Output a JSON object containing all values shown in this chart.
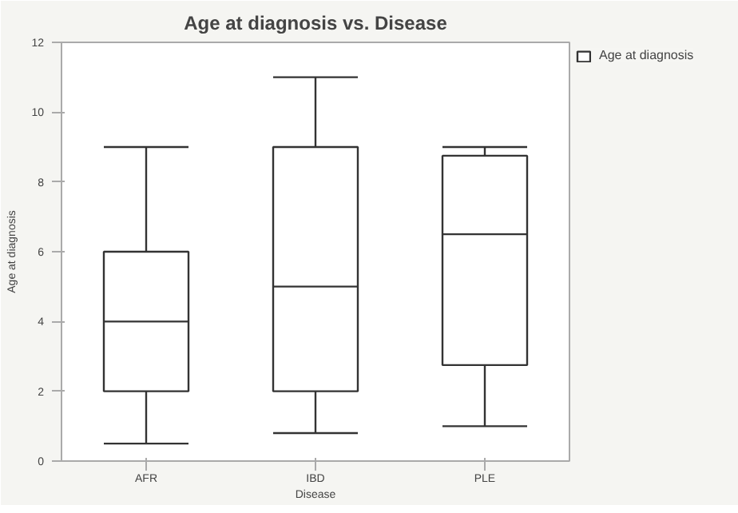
{
  "chart_data": {
    "type": "box",
    "title": "Age at diagnosis vs. Disease",
    "xlabel": "Disease",
    "ylabel": "Age at diagnosis",
    "categories": [
      "AFR",
      "IBD",
      "PLE"
    ],
    "series": [
      {
        "name": "Age at diagnosis",
        "color": "#333333",
        "boxes": [
          {
            "low": 0.5,
            "q1": 2,
            "median": 4,
            "q3": 6,
            "high": 9
          },
          {
            "low": 0.8,
            "q1": 2,
            "median": 5,
            "q3": 9,
            "high": 11
          },
          {
            "low": 1,
            "q1": 2.75,
            "median": 6.5,
            "q3": 8.75,
            "high": 9
          }
        ]
      }
    ],
    "ylim": [
      0,
      12
    ],
    "yticks": [
      0,
      2,
      4,
      6,
      8,
      10,
      12
    ],
    "grid": false,
    "legend": "top right"
  }
}
